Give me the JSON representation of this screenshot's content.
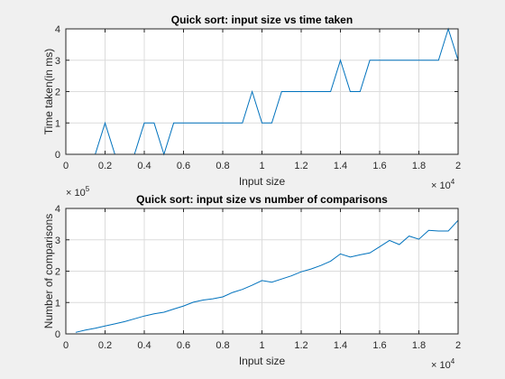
{
  "chart_data": [
    {
      "type": "line",
      "title": "Quick sort: input size vs time taken",
      "xlabel": "Input size",
      "ylabel": "Time taken(in ms)",
      "xlim": [
        0,
        20000
      ],
      "ylim": [
        0,
        4
      ],
      "x_tick_labels": [
        "0",
        "0.2",
        "0.4",
        "0.6",
        "0.8",
        "1",
        "1.2",
        "1.4",
        "1.6",
        "1.8",
        "2"
      ],
      "y_tick_labels": [
        "0",
        "1",
        "2",
        "3",
        "4"
      ],
      "x_exponent_base": "× 10",
      "x_exponent_power": "4",
      "grid": true,
      "line_color": "#0072bd",
      "x": [
        500,
        1000,
        1500,
        2000,
        2500,
        3000,
        3500,
        4000,
        4500,
        5000,
        5500,
        6000,
        6500,
        7000,
        7500,
        8000,
        8500,
        9000,
        9500,
        10000,
        10500,
        11000,
        11500,
        12000,
        12500,
        13000,
        13500,
        14000,
        14500,
        15000,
        15500,
        16000,
        16500,
        17000,
        17500,
        18000,
        18500,
        19000,
        19500,
        20000
      ],
      "y": [
        0,
        0,
        0,
        1,
        0,
        0,
        0,
        1,
        1,
        0,
        1,
        1,
        1,
        1,
        1,
        1,
        1,
        1,
        2,
        1,
        1,
        2,
        2,
        2,
        2,
        2,
        2,
        3,
        2,
        2,
        3,
        3,
        3,
        3,
        3,
        3,
        3,
        3,
        4,
        3
      ]
    },
    {
      "type": "line",
      "title": "Quick sort: input size vs number of comparisons",
      "xlabel": "Input size",
      "ylabel": "Number of comparisons",
      "xlim": [
        0,
        20000
      ],
      "ylim": [
        0,
        400000
      ],
      "x_tick_labels": [
        "0",
        "0.2",
        "0.4",
        "0.6",
        "0.8",
        "1",
        "1.2",
        "1.4",
        "1.6",
        "1.8",
        "2"
      ],
      "y_tick_labels": [
        "0",
        "1",
        "2",
        "3",
        "4"
      ],
      "x_exponent_base": "× 10",
      "x_exponent_power": "4",
      "y_exponent_base": "× 10",
      "y_exponent_power": "5",
      "grid": true,
      "line_color": "#0072bd",
      "x": [
        500,
        1000,
        1500,
        2000,
        2500,
        3000,
        3500,
        4000,
        4500,
        5000,
        5500,
        6000,
        6500,
        7000,
        7500,
        8000,
        8500,
        9000,
        9500,
        10000,
        10500,
        11000,
        11500,
        12000,
        12500,
        13000,
        13500,
        14000,
        14500,
        15000,
        15500,
        16000,
        16500,
        17000,
        17500,
        18000,
        18500,
        19000,
        19500,
        20000
      ],
      "y": [
        5000,
        12000,
        18000,
        25000,
        32000,
        39000,
        48000,
        57000,
        64000,
        69000,
        79000,
        89000,
        101000,
        108000,
        112000,
        118000,
        132000,
        142000,
        155000,
        170000,
        165000,
        175000,
        185000,
        198000,
        207000,
        218000,
        232000,
        255000,
        245000,
        252000,
        258000,
        278000,
        298000,
        285000,
        312000,
        302000,
        330000,
        328000,
        328000,
        362000
      ]
    }
  ]
}
